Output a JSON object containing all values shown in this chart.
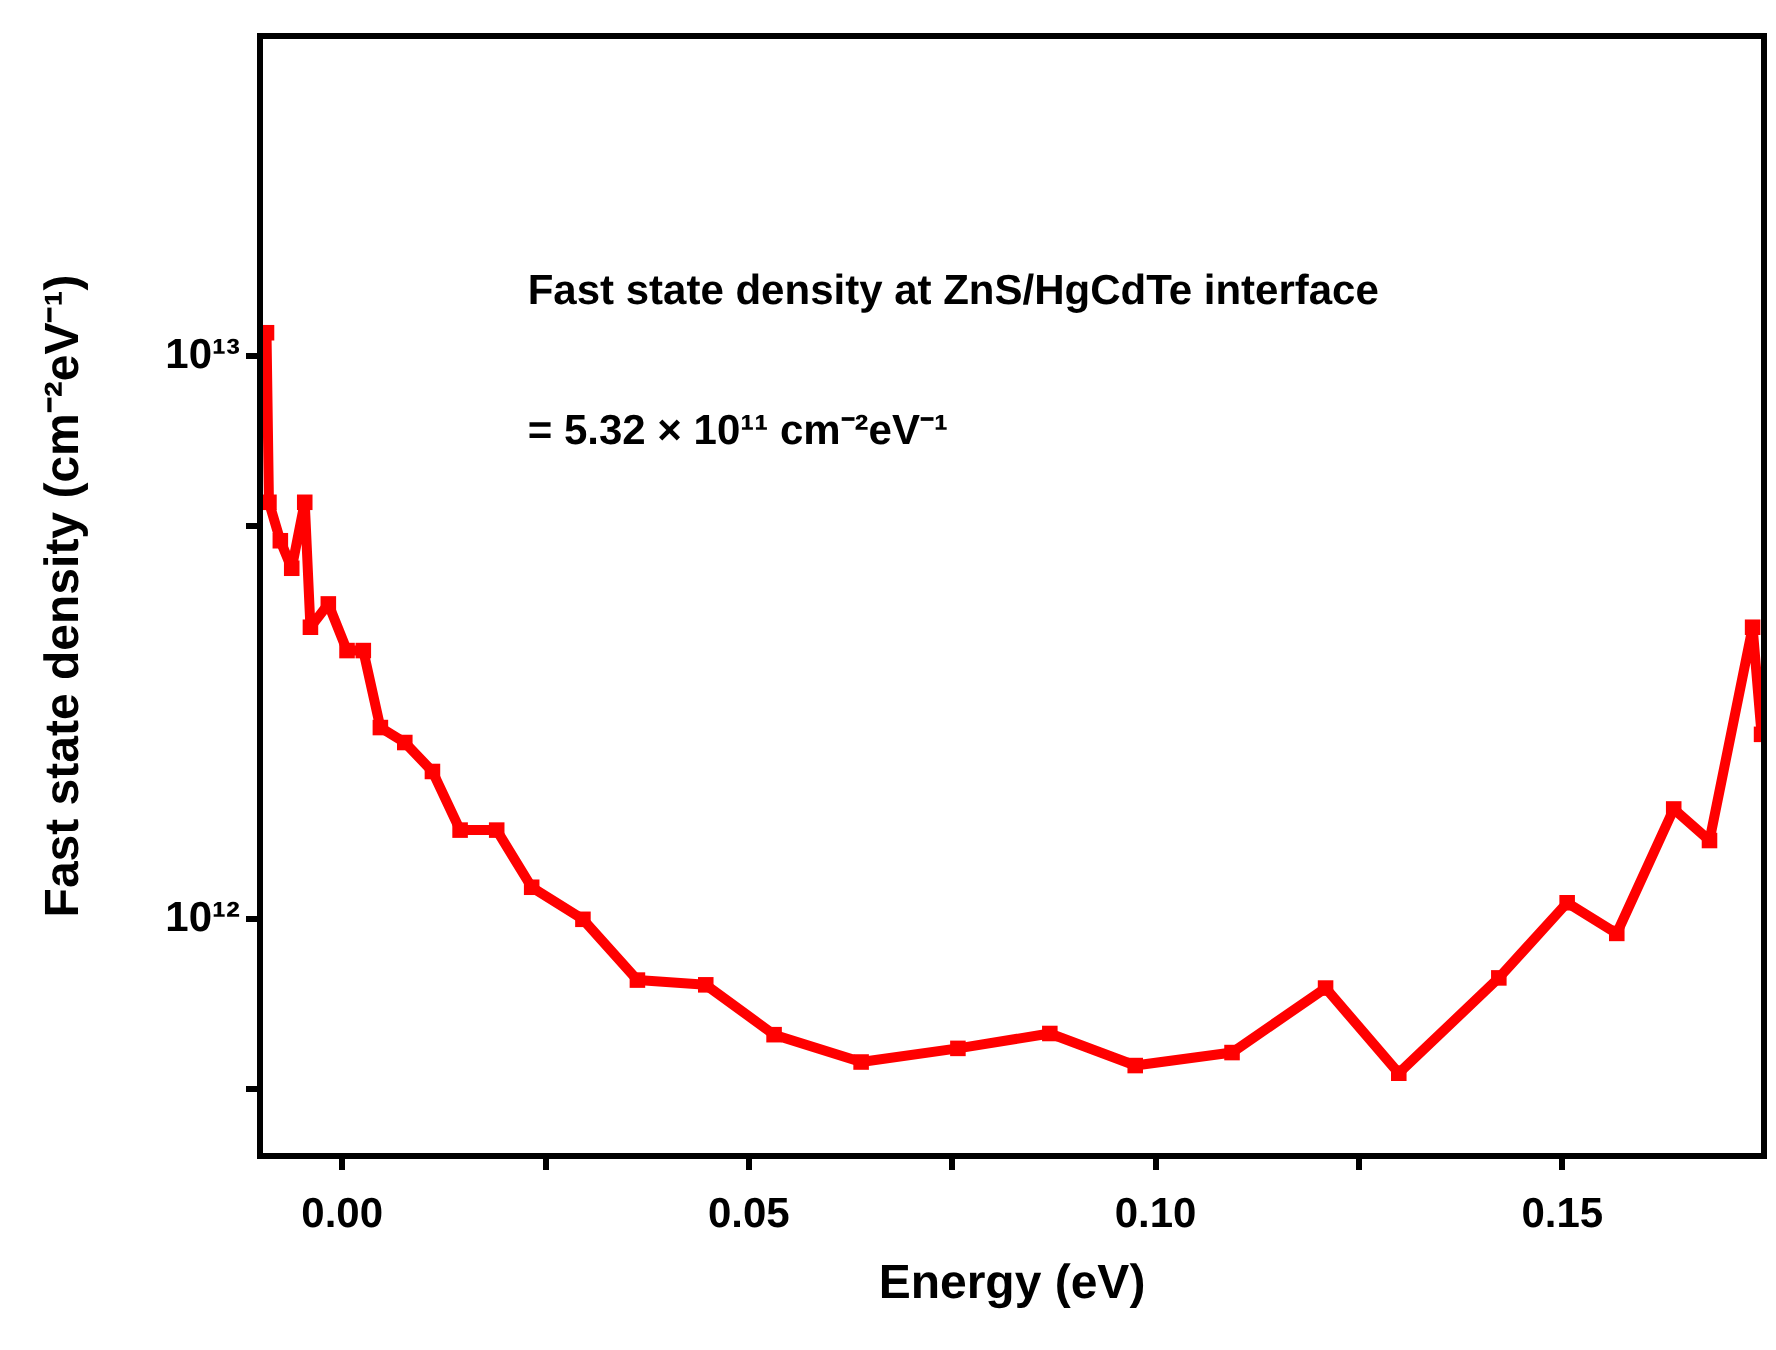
{
  "chart_data": {
    "type": "line",
    "xlabel": "Energy (eV)",
    "ylabel": "Fast state density (cm⁻²eV⁻¹)",
    "annotations": [
      "Fast state density at ZnS/HgCdTe interface",
      "= 5.32 × 10¹¹ cm⁻²eV⁻¹"
    ],
    "log": "y",
    "marker": "square",
    "line_style": "solid",
    "xlim": [
      -0.0101,
      0.1748
    ],
    "ylim": [
      380000000000.0,
      37000000000000.0
    ],
    "xticks": [
      {
        "value": 0,
        "label": "0.00"
      },
      {
        "value": 0.025,
        "label": null
      },
      {
        "value": 0.05,
        "label": "0.05"
      },
      {
        "value": 0.075,
        "label": null
      },
      {
        "value": 0.1,
        "label": "0.10"
      },
      {
        "value": 0.125,
        "label": null
      },
      {
        "value": 0.15,
        "label": "0.15"
      }
    ],
    "yticks": [
      {
        "value": 500000000000.0,
        "label": null
      },
      {
        "value": 1000000000000.0,
        "label": "10¹²"
      },
      {
        "value": 5000000000000.0,
        "label": null
      },
      {
        "value": 10000000000000.0,
        "label": "10¹³"
      }
    ],
    "series": [
      {
        "color": "#ff0000",
        "x": [
          -0.0093,
          -0.009,
          -0.0076,
          -0.0062,
          -0.0046,
          -0.0039,
          -0.0017,
          0.0006,
          0.0026,
          0.0047,
          0.0077,
          0.0111,
          0.0145,
          0.019,
          0.0233,
          0.0296,
          0.0363,
          0.0447,
          0.0531,
          0.0638,
          0.0757,
          0.087,
          0.0975,
          0.1094,
          0.1209,
          0.1299,
          0.1422,
          0.1506,
          0.1567,
          0.1637,
          0.1681,
          0.1734,
          0.1745
        ],
        "values": [
          11000000000000.0,
          5500000000000.0,
          4700000000000.0,
          4200000000000.0,
          5500000000000.0,
          3300000000000.0,
          3630000000000.0,
          3000000000000.0,
          3000000000000.0,
          2190000000000.0,
          2060000000000.0,
          1830000000000.0,
          1440000000000.0,
          1440000000000.0,
          1140000000000.0,
          1000000000000.0,
          780000000000.0,
          765000000000.0,
          624000000000.0,
          558000000000.0,
          590000000000.0,
          627000000000.0,
          550000000000.0,
          580000000000.0,
          755000000000.0,
          533000000000.0,
          787000000000.0,
          1070000000000.0,
          944000000000.0,
          1570000000000.0,
          1380000000000.0,
          3300000000000.0,
          2130000000000.0
        ]
      }
    ]
  }
}
